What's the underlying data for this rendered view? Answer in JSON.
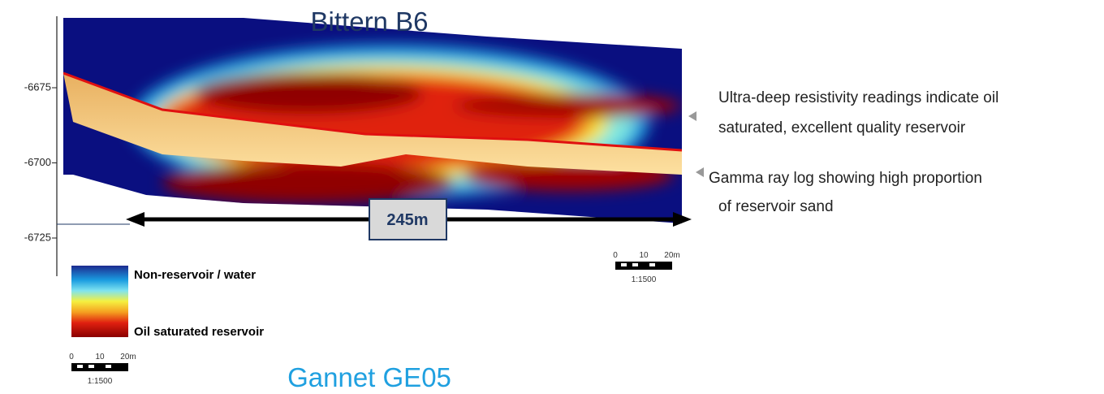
{
  "header": {
    "title": "Bittern B6",
    "subtitle": "Gannet GE05"
  },
  "depth_axis": {
    "ticks": [
      -6675,
      -6700,
      -6725
    ]
  },
  "annotations": [
    [
      "Ultra-deep resistivity readings indicate oil",
      "saturated, excellent quality reservoir"
    ],
    [
      "Gamma ray log showing high proportion",
      "of reservoir sand"
    ]
  ],
  "distance": "245m",
  "legend": {
    "top": "Non-reservoir / water",
    "bottom": "Oil saturated reservoir"
  },
  "scale_bars": [
    {
      "labels": [
        "0",
        "10",
        "20m"
      ],
      "ratio": "1:1500"
    },
    {
      "labels": [
        "0",
        "10",
        "20m"
      ],
      "ratio": "1:1500"
    }
  ]
}
